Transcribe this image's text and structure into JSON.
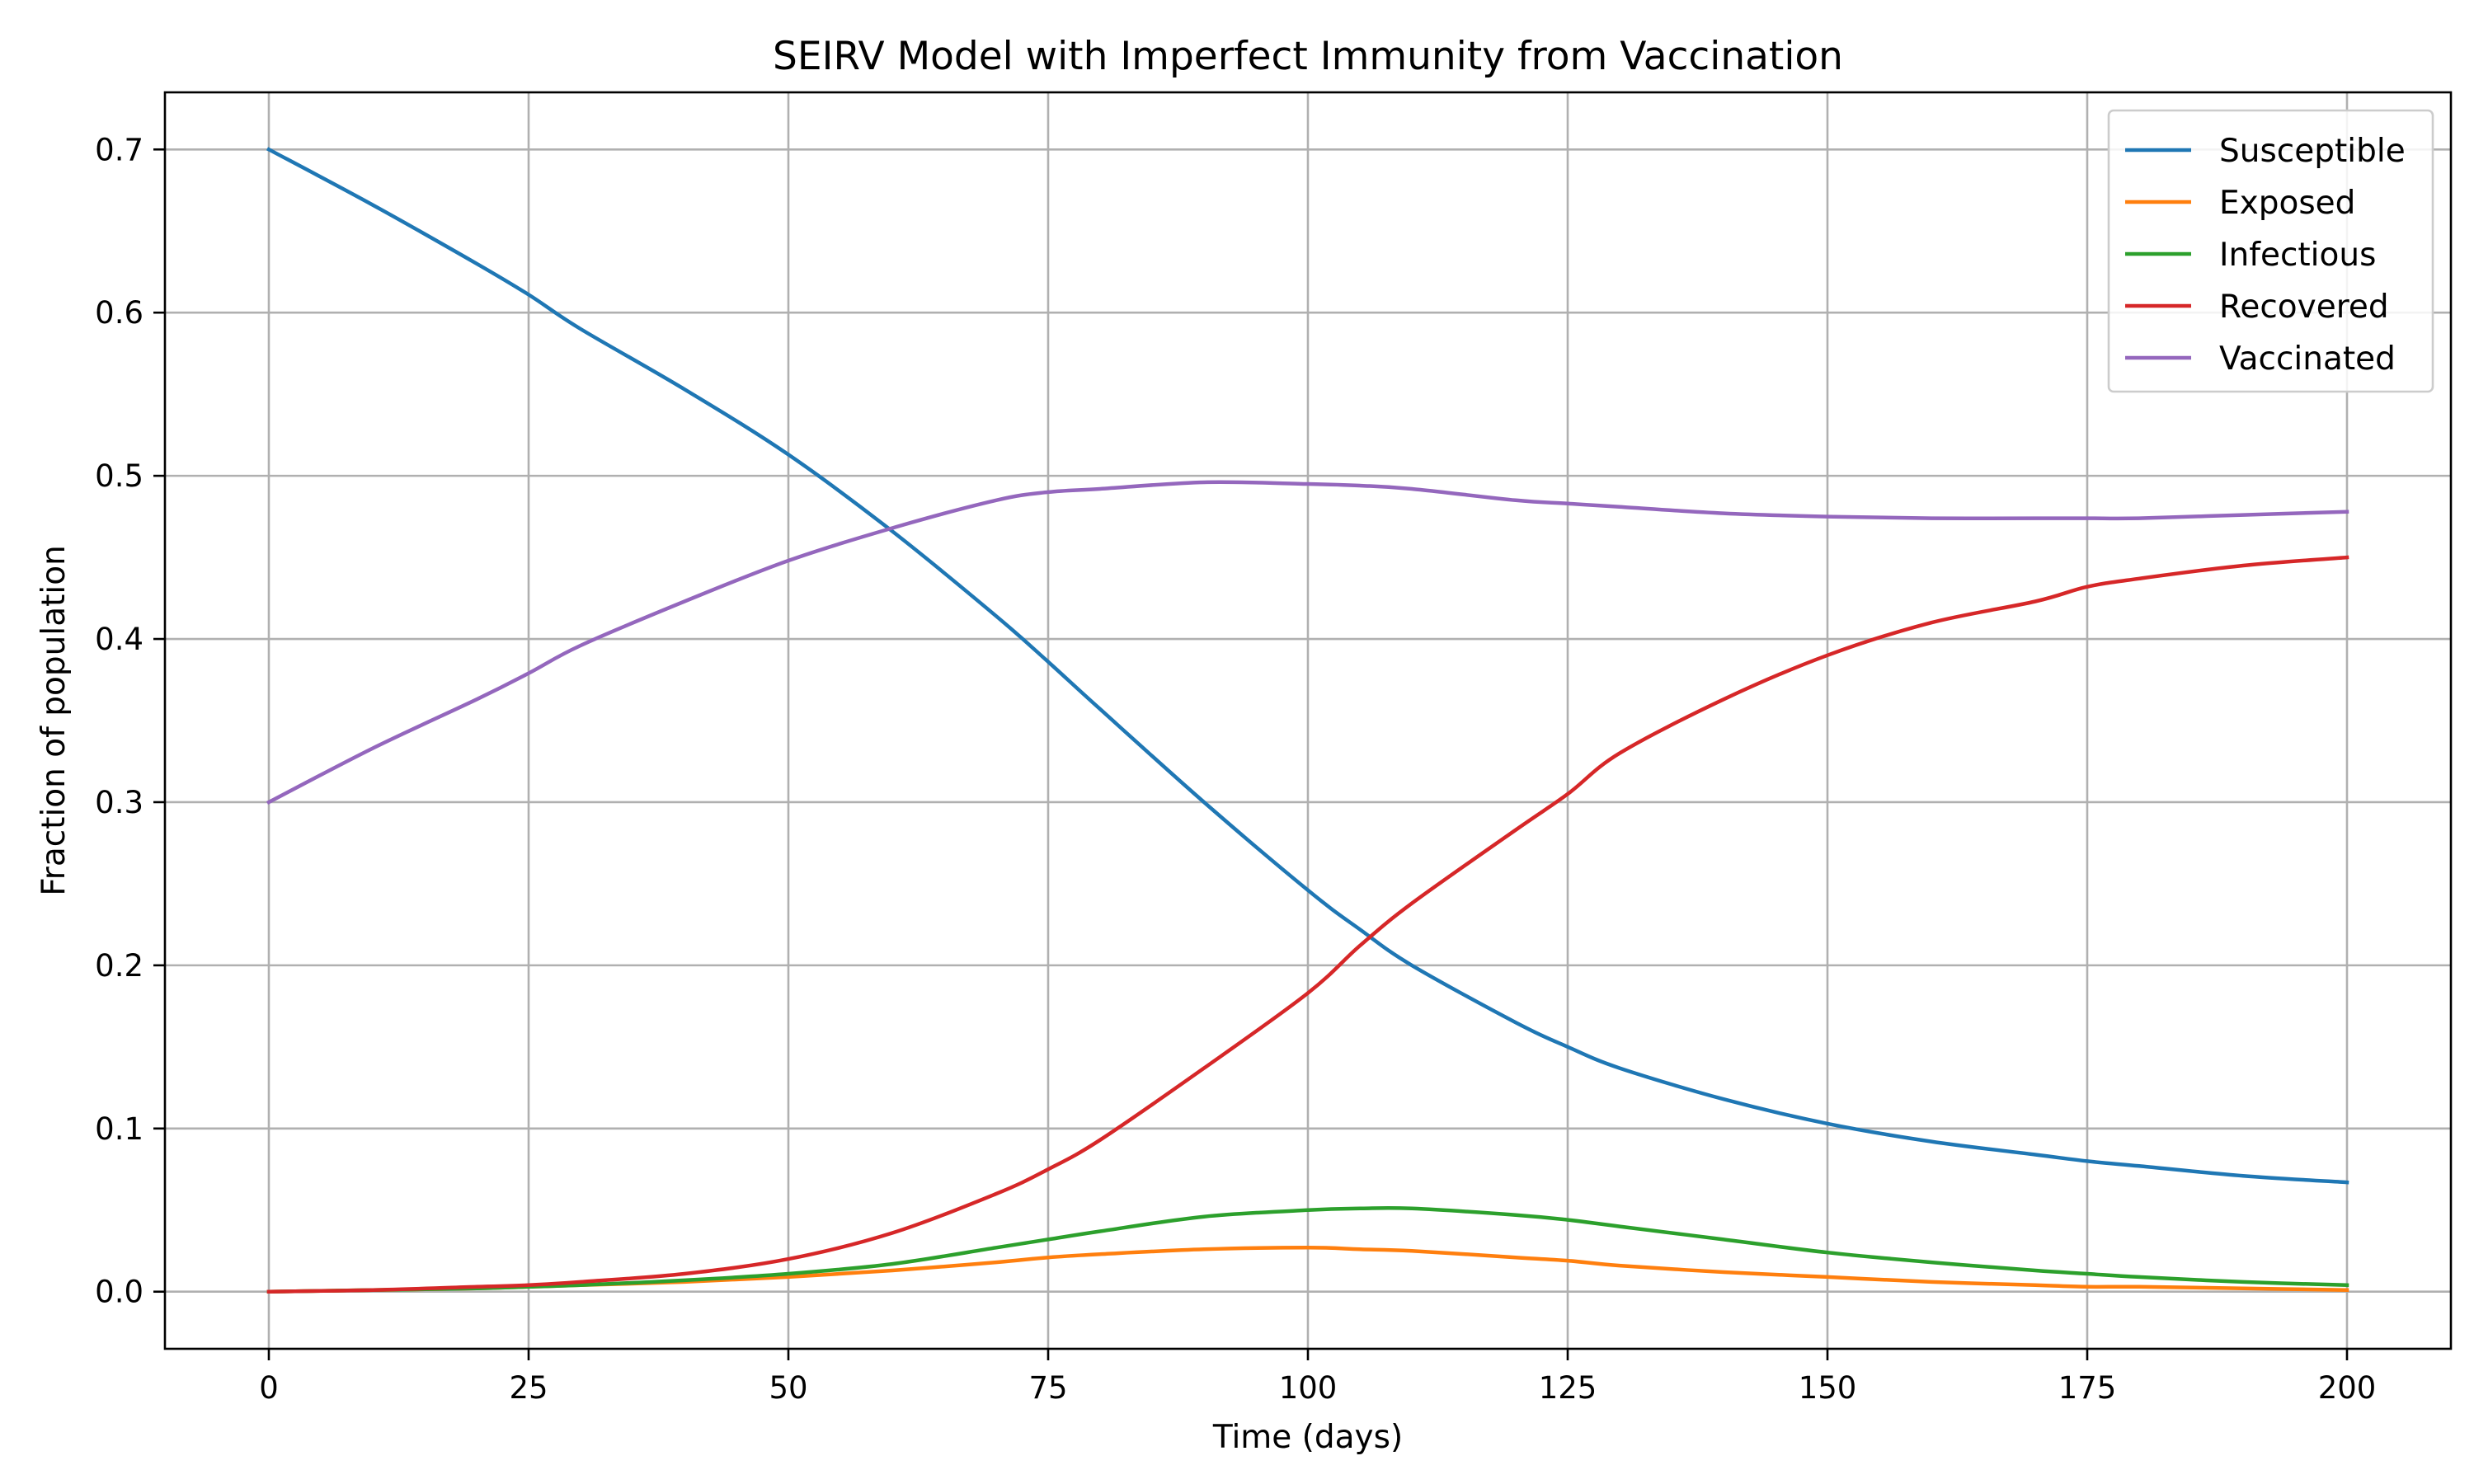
{
  "chart_data": {
    "type": "line",
    "title": "SEIRV Model with Imperfect Immunity from Vaccination",
    "xlabel": "Time (days)",
    "ylabel": "Fraction of population",
    "xlim": [
      -10,
      210
    ],
    "ylim": [
      -0.035,
      0.735
    ],
    "xticks": [
      0,
      25,
      50,
      75,
      100,
      125,
      150,
      175,
      200
    ],
    "yticks": [
      0.0,
      0.1,
      0.2,
      0.3,
      0.4,
      0.5,
      0.6,
      0.7
    ],
    "xtick_labels": [
      "0",
      "25",
      "50",
      "75",
      "100",
      "125",
      "150",
      "175",
      "200"
    ],
    "ytick_labels": [
      "0.0",
      "0.1",
      "0.2",
      "0.3",
      "0.4",
      "0.5",
      "0.6",
      "0.7"
    ],
    "grid": true,
    "legend_position": "top-right",
    "x": [
      0,
      10,
      20,
      25,
      30,
      40,
      50,
      60,
      70,
      75,
      80,
      90,
      100,
      105,
      110,
      120,
      125,
      130,
      140,
      150,
      160,
      170,
      175,
      180,
      190,
      200
    ],
    "series": [
      {
        "name": "Susceptible",
        "color": "#1f77b4",
        "values": [
          0.7,
          0.666,
          0.63,
          0.611,
          0.59,
          0.553,
          0.513,
          0.466,
          0.414,
          0.386,
          0.357,
          0.3,
          0.246,
          0.222,
          0.2,
          0.165,
          0.15,
          0.137,
          0.118,
          0.103,
          0.092,
          0.084,
          0.08,
          0.077,
          0.071,
          0.067
        ]
      },
      {
        "name": "Exposed",
        "color": "#ff7f0e",
        "values": [
          0.0,
          0.001,
          0.002,
          0.003,
          0.004,
          0.006,
          0.009,
          0.013,
          0.018,
          0.021,
          0.023,
          0.026,
          0.027,
          0.026,
          0.025,
          0.021,
          0.019,
          0.016,
          0.012,
          0.009,
          0.006,
          0.004,
          0.003,
          0.003,
          0.002,
          0.001
        ]
      },
      {
        "name": "Infectious",
        "color": "#2ca02c",
        "values": [
          0.0,
          0.001,
          0.002,
          0.003,
          0.004,
          0.007,
          0.011,
          0.017,
          0.027,
          0.032,
          0.037,
          0.046,
          0.05,
          0.051,
          0.051,
          0.047,
          0.044,
          0.04,
          0.032,
          0.024,
          0.018,
          0.013,
          0.011,
          0.009,
          0.006,
          0.004
        ]
      },
      {
        "name": "Recovered",
        "color": "#d62728",
        "values": [
          0.0,
          0.001,
          0.003,
          0.004,
          0.006,
          0.011,
          0.02,
          0.036,
          0.06,
          0.075,
          0.093,
          0.137,
          0.183,
          0.212,
          0.238,
          0.283,
          0.305,
          0.33,
          0.363,
          0.39,
          0.41,
          0.423,
          0.432,
          0.437,
          0.445,
          0.45
        ]
      },
      {
        "name": "Vaccinated",
        "color": "#9467bd",
        "values": [
          0.3,
          0.333,
          0.363,
          0.379,
          0.396,
          0.423,
          0.448,
          0.468,
          0.485,
          0.49,
          0.492,
          0.496,
          0.495,
          0.494,
          0.492,
          0.485,
          0.483,
          0.481,
          0.477,
          0.475,
          0.474,
          0.474,
          0.474,
          0.474,
          0.476,
          0.478
        ]
      }
    ]
  }
}
